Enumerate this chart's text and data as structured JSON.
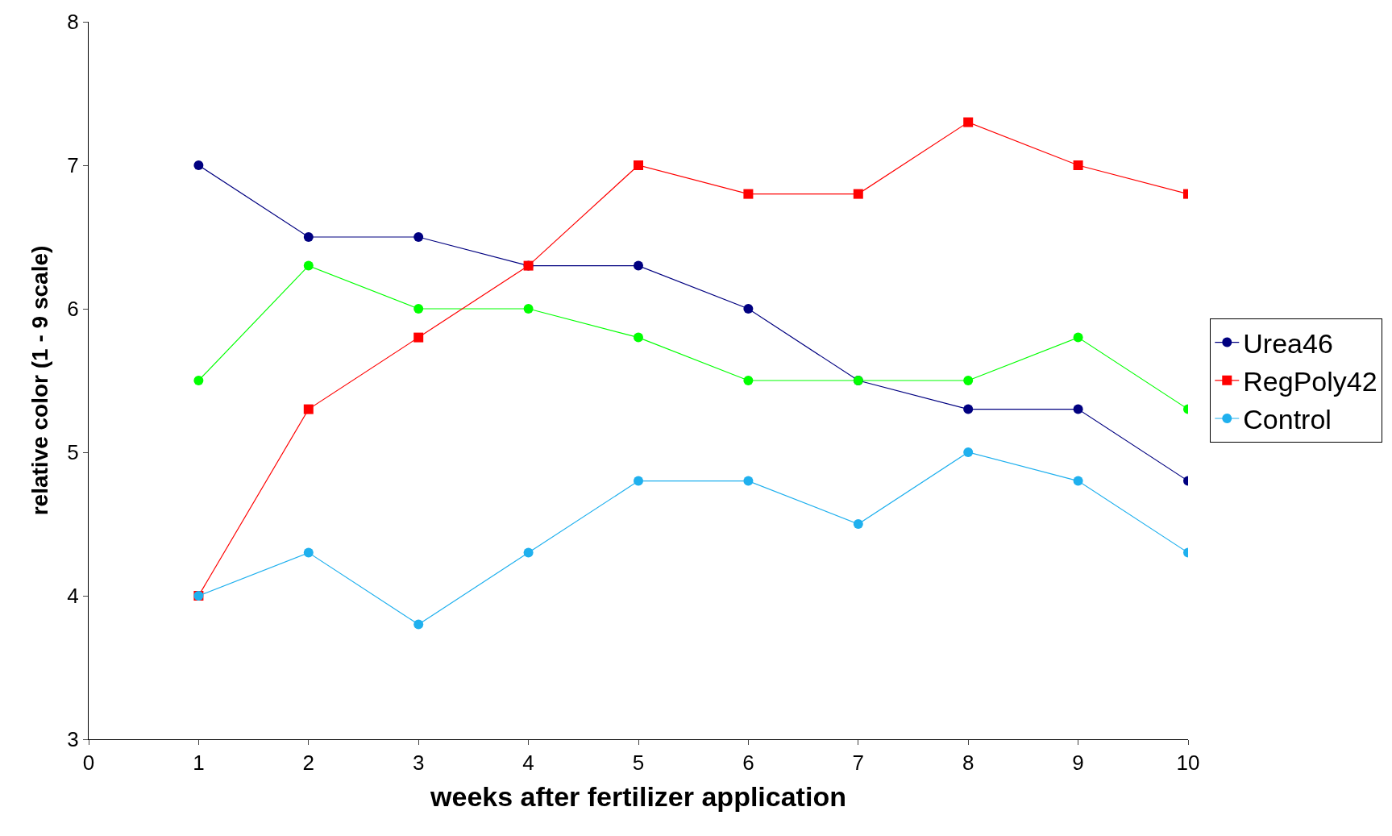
{
  "chart_data": {
    "type": "line",
    "xlabel": "weeks after fertilizer application",
    "ylabel": "relative color (1 - 9 scale)",
    "x": [
      1,
      2,
      3,
      4,
      5,
      6,
      7,
      8,
      9,
      10
    ],
    "series": [
      {
        "name": "Urea46",
        "color": "#000080",
        "marker": "circle",
        "values": [
          7,
          6.5,
          6.5,
          6.3,
          6.3,
          6,
          5.5,
          5.3,
          5.3,
          4.8
        ]
      },
      {
        "color": "#00ff00",
        "marker": "circle",
        "values": [
          5.5,
          6.3,
          6,
          6,
          5.8,
          5.5,
          5.5,
          5.5,
          5.8,
          5.3
        ]
      },
      {
        "name": "RegPoly42",
        "color": "#ff0000",
        "marker": "square",
        "values": [
          4,
          5.3,
          5.8,
          6.3,
          7,
          6.8,
          6.8,
          7.3,
          7,
          6.8
        ]
      },
      {
        "name": "Control",
        "color": "#1fb0ee",
        "marker": "circle",
        "values": [
          4,
          4.3,
          3.8,
          4.3,
          4.8,
          4.8,
          4.5,
          5,
          4.8,
          4.3
        ]
      }
    ],
    "xlim": [
      0,
      10
    ],
    "xticks": [
      0,
      1,
      2,
      3,
      4,
      5,
      6,
      7,
      8,
      9,
      10
    ],
    "ylim": [
      3,
      8
    ],
    "yticks": [
      3,
      4,
      5,
      6,
      7,
      8
    ],
    "legend": "right",
    "line_style": "solid"
  }
}
